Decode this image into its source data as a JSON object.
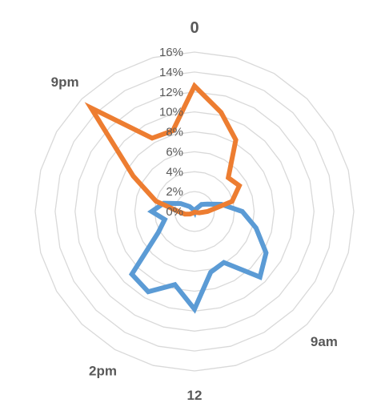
{
  "chart_data": {
    "type": "radar",
    "title": "",
    "r_ticks": [
      "0%",
      "2%",
      "4%",
      "6%",
      "8%",
      "10%",
      "12%",
      "14%",
      "16%"
    ],
    "r_max": 16,
    "grid": true,
    "legend": "none",
    "hour_labels": [
      {
        "label": "0",
        "hour": 0
      },
      {
        "label": "9am",
        "hour": 9
      },
      {
        "label": "12",
        "hour": 12
      },
      {
        "label": "2pm",
        "hour": 14
      },
      {
        "label": "9pm",
        "hour": 21
      }
    ],
    "series": [
      {
        "color": "#5b9bd5",
        "values": [
          0.0,
          0.1,
          0.3,
          1.0,
          1.5,
          2.8,
          4.8,
          6.4,
          8.3,
          9.3,
          5.9,
          6.3,
          9.8,
          7.6,
          9.3,
          8.9,
          4.2,
          3.1,
          4.3,
          3.2,
          1.6,
          0.7,
          0.2,
          0.0
        ]
      },
      {
        "color": "#ed7d31",
        "values": [
          12.6,
          10.3,
          8.3,
          4.8,
          5.2,
          3.9,
          1.3,
          0.5,
          0.2,
          0.1,
          0.1,
          0.1,
          0.1,
          0.1,
          0.1,
          0.2,
          0.5,
          1.0,
          1.6,
          4.0,
          7.1,
          14.7,
          8.5,
          8.4
        ]
      }
    ]
  }
}
